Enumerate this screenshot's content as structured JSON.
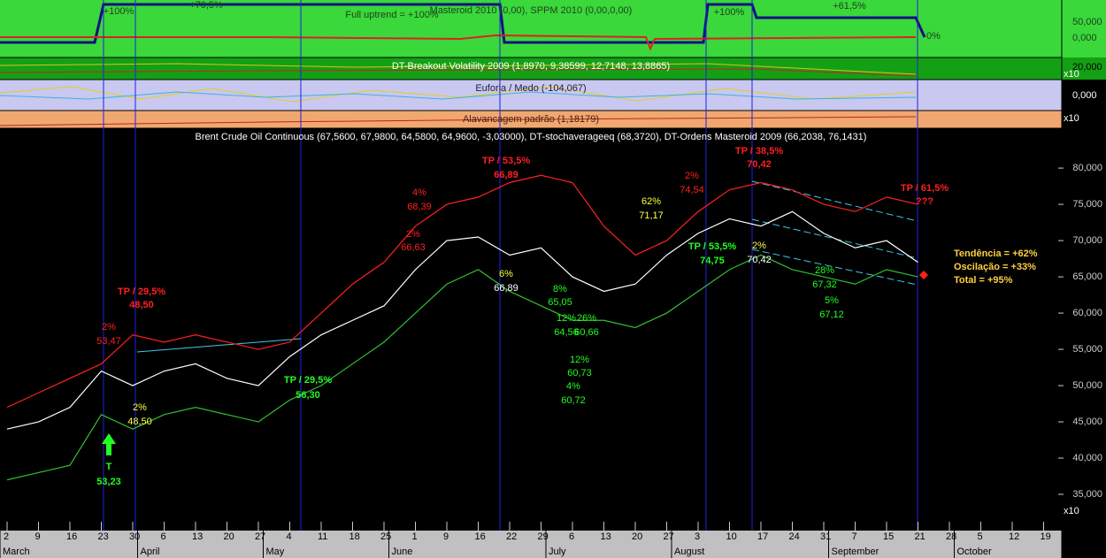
{
  "chart_data": {
    "type": "line",
    "title": "Brent Crude Oil Continuous (67,5600, 67,9800, 64,5800, 64,9600, -3,03000), DT-stochaverageeq (68,3720), DT-Ordens Masteroid 2009 (66,2038, 76,1431)",
    "categories": [
      "2",
      "9",
      "16",
      "23",
      "30",
      "6",
      "13",
      "20",
      "27",
      "4",
      "11",
      "18",
      "25",
      "1",
      "9",
      "16",
      "22",
      "29",
      "6",
      "13",
      "20",
      "27",
      "3",
      "10",
      "17",
      "24",
      "31",
      "7",
      "15",
      "21",
      "28",
      "5",
      "12",
      "19"
    ],
    "months": [
      "March",
      "April",
      "May",
      "June",
      "July",
      "August",
      "September",
      "October"
    ],
    "series": [
      {
        "color": "#ff2020",
        "values": [
          47,
          49,
          51,
          53,
          57,
          56,
          57,
          56,
          55,
          56,
          60,
          64,
          67,
          72,
          75,
          76,
          78,
          79,
          78,
          72,
          68,
          70,
          74,
          77,
          78,
          77,
          75,
          74,
          76,
          75,
          null,
          null,
          null,
          null
        ]
      },
      {
        "color": "#ffffff",
        "values": [
          44,
          45,
          47,
          52,
          50,
          52,
          53,
          51,
          50,
          54,
          57,
          59,
          61,
          66,
          70,
          70.5,
          68,
          69,
          65,
          63,
          64,
          68,
          71,
          73,
          72,
          74,
          71,
          69,
          70,
          67,
          null,
          null,
          null,
          null
        ]
      },
      {
        "color": "#30c030",
        "values": [
          37,
          38,
          39,
          46,
          44,
          46,
          47,
          46,
          45,
          48,
          50,
          53,
          56,
          60,
          64,
          66,
          63,
          61,
          59,
          59,
          58,
          60,
          63,
          66,
          68,
          66,
          65,
          64,
          66,
          65,
          null,
          null,
          null,
          null
        ]
      }
    ],
    "ylim": [
      30,
      85.5
    ],
    "yticks": [
      {
        "value": 35,
        "label": "35,000"
      },
      {
        "value": 40,
        "label": "40,000"
      },
      {
        "value": 45,
        "label": "45,000"
      },
      {
        "value": 50,
        "label": "50,000"
      },
      {
        "value": 55,
        "label": "55,000"
      },
      {
        "value": 60,
        "label": "60,000"
      },
      {
        "value": 65,
        "label": "65,000"
      },
      {
        "value": 70,
        "label": "70,000"
      },
      {
        "value": 75,
        "label": "75,000"
      },
      {
        "value": 80,
        "label": "80,000"
      }
    ],
    "annotations": [
      {
        "text": "TP / 29,5%",
        "color": "#ff2020"
      },
      {
        "text": "48,50",
        "color": "#ff2020"
      },
      {
        "text": "2%",
        "color": "#ff2020"
      },
      {
        "text": "53,47",
        "color": "#ff2020"
      },
      {
        "text": "2%",
        "color": "#ffff40"
      },
      {
        "text": "48,50",
        "color": "#ffff40"
      },
      {
        "text": "T",
        "color": "#20ff20"
      },
      {
        "text": "53,23",
        "color": "#20ff20"
      },
      {
        "text": "TP / 29,5%",
        "color": "#20ff20"
      },
      {
        "text": "56,30",
        "color": "#20ff20"
      },
      {
        "text": "4%",
        "color": "#ff2020"
      },
      {
        "text": "68,39",
        "color": "#ff2020"
      },
      {
        "text": "2%",
        "color": "#ff2020"
      },
      {
        "text": "66,63",
        "color": "#ff2020"
      },
      {
        "text": "TP / 53,5%",
        "color": "#ff2020"
      },
      {
        "text": "66,89",
        "color": "#ff2020"
      },
      {
        "text": "6%",
        "color": "#ffff40"
      },
      {
        "text": "66,89",
        "color": "#ffffff"
      },
      {
        "text": "8%",
        "color": "#20ff20"
      },
      {
        "text": "65,05",
        "color": "#20ff20"
      },
      {
        "text": "12%",
        "color": "#20ff20"
      },
      {
        "text": "64,56",
        "color": "#20ff20"
      },
      {
        "text": "26%",
        "color": "#20ff20"
      },
      {
        "text": "60,66",
        "color": "#20ff20"
      },
      {
        "text": "12%",
        "color": "#20ff20"
      },
      {
        "text": "60,73",
        "color": "#20ff20"
      },
      {
        "text": "4%",
        "color": "#20ff20"
      },
      {
        "text": "60,72",
        "color": "#20ff20"
      },
      {
        "text": "62%",
        "color": "#ffff40"
      },
      {
        "text": "71,17",
        "color": "#ffff40"
      },
      {
        "text": "2%",
        "color": "#ff2020"
      },
      {
        "text": "74,54",
        "color": "#ff2020"
      },
      {
        "text": "TP / 53,5%",
        "color": "#20ff20"
      },
      {
        "text": "74,75",
        "color": "#20ff20"
      },
      {
        "text": "TP / 38,5%",
        "color": "#ff2020"
      },
      {
        "text": "70,42",
        "color": "#ff2020"
      },
      {
        "text": "2%",
        "color": "#ffff40"
      },
      {
        "text": "70,42",
        "color": "#ffffff"
      },
      {
        "text": "28%",
        "color": "#20ff20"
      },
      {
        "text": "67,32",
        "color": "#20ff20"
      },
      {
        "text": "5%",
        "color": "#20ff20"
      },
      {
        "text": "67,12",
        "color": "#20ff20"
      },
      {
        "text": "TP / 61,5%",
        "color": "#ff2020"
      },
      {
        "text": "???",
        "color": "#ff2020"
      }
    ],
    "summary": [
      "Tendência = +62%",
      "Oscilação = +33%",
      "Total = +95%"
    ]
  },
  "panels": {
    "masteroid": {
      "title": "Masteroid 2010 (0,00), SPPM 2010 (0,00,0,00)",
      "note": "Full uptrend = +100%",
      "labels": [
        "+100%",
        "+70,5%",
        "+100%",
        "+61,5%",
        "0%"
      ],
      "axis": [
        "50,000",
        "0,000"
      ]
    },
    "breakout": {
      "title": "DT-Breakout Volatility 2009 (1,8970, 9,38599, 12,7148, 13,8865)",
      "axis": [
        "20,000"
      ]
    },
    "euforia": {
      "title": "Euforia / Medo (-104,067)",
      "axis": [
        "x10",
        "0,000"
      ]
    },
    "alavancagem": {
      "title": "Alavancagem padrão (1,18179)",
      "axis": [
        "x10"
      ]
    },
    "scale_note": "x10"
  }
}
